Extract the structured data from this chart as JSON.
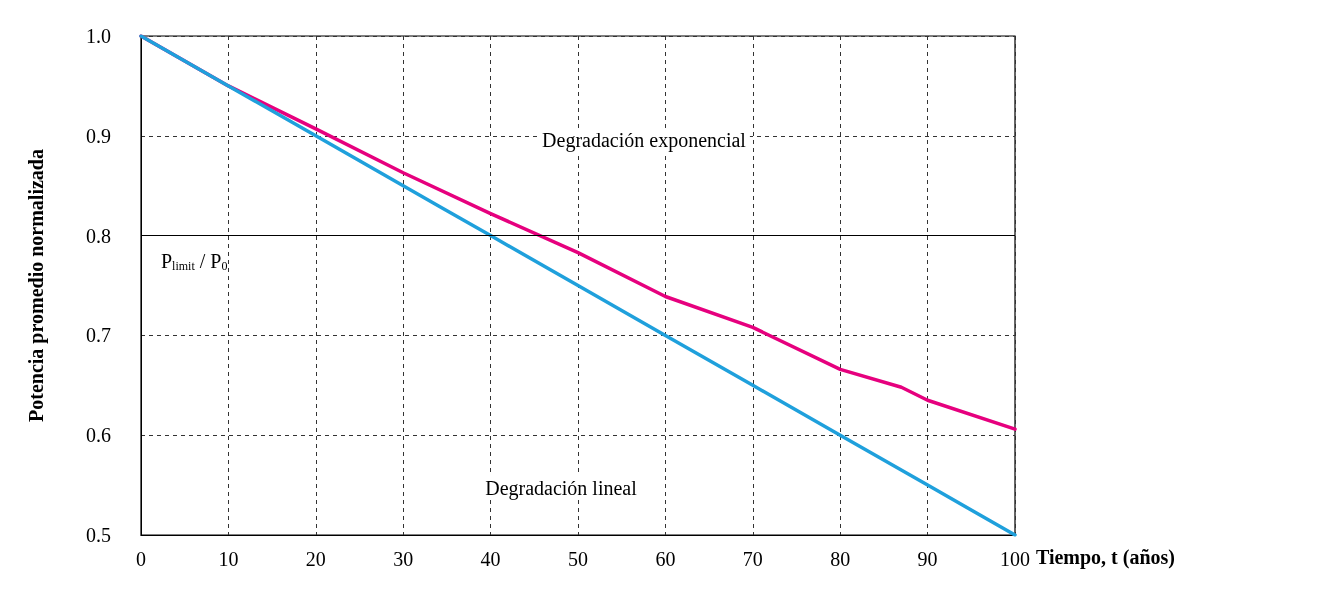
{
  "chart_data": {
    "type": "line",
    "xlabel": "Tiempo, t (años)",
    "ylabel": "Potencia promedio normalizada",
    "xlim": [
      0,
      100
    ],
    "xticks": [
      0,
      10,
      20,
      30,
      40,
      50,
      60,
      70,
      80,
      90,
      100
    ],
    "ylim": [
      0.5,
      1.0
    ],
    "yticks": [
      0.5,
      0.6,
      0.7,
      0.8,
      0.9,
      {
        "value": 1.0,
        "label": "1.0"
      }
    ],
    "grid": true,
    "series": [
      {
        "color": "#e6007e",
        "x": [
          0,
          10,
          20,
          30,
          40,
          50,
          60,
          70,
          80,
          87,
          90,
          100
        ],
        "values": [
          1.0,
          0.95,
          0.907,
          0.863,
          0.822,
          0.783,
          0.739,
          0.708,
          0.666,
          0.648,
          0.635,
          0.606
        ]
      },
      {
        "color": "#1fa0dc",
        "x": [
          0,
          10,
          20,
          30,
          34,
          40,
          50,
          60,
          70,
          80,
          90,
          100
        ],
        "values": [
          1.0,
          0.95,
          0.9,
          0.85,
          0.83,
          0.8,
          0.75,
          0.7,
          0.65,
          0.6,
          0.55,
          0.5
        ]
      }
    ],
    "ref_lines": [
      {
        "axis": "y",
        "value": 0.8,
        "label": "P$_{limit}$ / P$_{0}$"
      }
    ],
    "annotations": [
      "Degradación exponencial",
      "Degradación lineal"
    ]
  }
}
